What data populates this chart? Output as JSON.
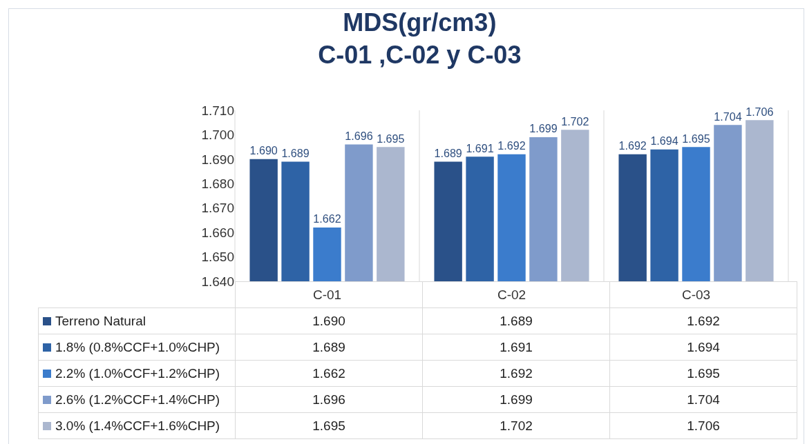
{
  "chart_data": {
    "type": "bar",
    "title": "MDS(gr/cm3)\nC-01 ,C-02 y C-03",
    "categories": [
      "C-01",
      "C-02",
      "C-03"
    ],
    "series": [
      {
        "name": "Terreno Natural",
        "color": "#2a5189",
        "values": [
          1.69,
          1.689,
          1.692
        ],
        "value_labels": [
          "1.690",
          "1.689",
          "1.692"
        ]
      },
      {
        "name": "1.8% (0.8%CCF+1.0%CHP)",
        "color": "#2e63a6",
        "values": [
          1.689,
          1.691,
          1.694
        ],
        "value_labels": [
          "1.689",
          "1.691",
          "1.694"
        ]
      },
      {
        "name": "2.2% (1.0%CCF+1.2%CHP)",
        "color": "#3b7ccc",
        "values": [
          1.662,
          1.692,
          1.695
        ],
        "value_labels": [
          "1.662",
          "1.692",
          "1.695"
        ]
      },
      {
        "name": "2.6% (1.2%CCF+1.4%CHP)",
        "color": "#7f9bcb",
        "values": [
          1.696,
          1.699,
          1.704
        ],
        "value_labels": [
          "1.696",
          "1.699",
          "1.704"
        ]
      },
      {
        "name": "3.0% (1.4%CCF+1.6%CHP)",
        "color": "#abb7cf",
        "values": [
          1.695,
          1.702,
          1.706
        ],
        "value_labels": [
          "1.695",
          "1.702",
          "1.706"
        ]
      }
    ],
    "ylim": [
      1.64,
      1.71
    ],
    "yticks": [
      {
        "value": 1.64,
        "label": "1.640"
      },
      {
        "value": 1.65,
        "label": "1.650"
      },
      {
        "value": 1.66,
        "label": "1.660"
      },
      {
        "value": 1.67,
        "label": "1.670"
      },
      {
        "value": 1.68,
        "label": "1.680"
      },
      {
        "value": 1.69,
        "label": "1.690"
      },
      {
        "value": 1.7,
        "label": "1.700"
      },
      {
        "value": 1.71,
        "label": "1.710"
      }
    ],
    "grid": false,
    "legend": "bottom"
  }
}
